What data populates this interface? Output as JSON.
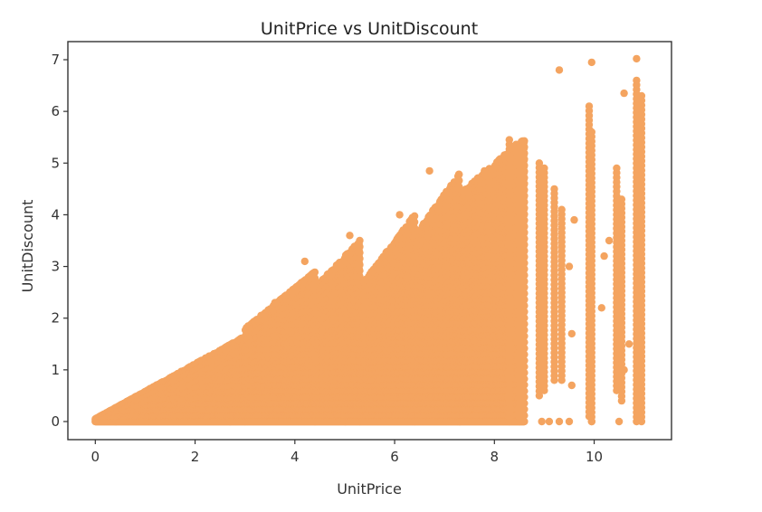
{
  "chart_data": {
    "type": "scatter",
    "title": "UnitPrice vs UnitDiscount",
    "xlabel": "UnitPrice",
    "ylabel": "UnitDiscount",
    "xlim": [
      -0.55,
      11.55
    ],
    "ylim": [
      -0.35,
      7.35
    ],
    "xticks": [
      0,
      2,
      4,
      6,
      8,
      10
    ],
    "yticks": [
      0,
      1,
      2,
      3,
      4,
      5,
      6,
      7
    ],
    "grid": false,
    "legend": "none",
    "marker_color": "#f4a460",
    "bands": [
      {
        "x_start": 0.0,
        "x_end": 3.0,
        "y_min": 0,
        "y_max_start": 0.05,
        "y_max_end": 1.65
      },
      {
        "x_start": 3.0,
        "x_end": 4.4,
        "y_min": 0,
        "y_max_start": 1.8,
        "y_max_end": 2.9
      },
      {
        "x_start": 4.4,
        "x_end": 5.3,
        "y_min": 0,
        "y_max_start": 2.6,
        "y_max_end": 3.5
      },
      {
        "x_start": 5.3,
        "x_end": 6.4,
        "y_min": 0,
        "y_max_start": 2.6,
        "y_max_end": 4.0
      },
      {
        "x_start": 6.4,
        "x_end": 7.3,
        "y_min": 0,
        "y_max_start": 3.6,
        "y_max_end": 4.8
      },
      {
        "x_start": 7.3,
        "x_end": 8.6,
        "y_min": 0,
        "y_max_start": 4.4,
        "y_max_end": 5.5
      }
    ],
    "columns": [
      {
        "x": 8.3,
        "y_min": 0.0,
        "y_max": 5.45
      },
      {
        "x": 8.5,
        "y_min": 0.0,
        "y_max": 5.3
      },
      {
        "x": 8.9,
        "y_min": 0.5,
        "y_max": 5.0
      },
      {
        "x": 9.0,
        "y_min": 0.6,
        "y_max": 4.9
      },
      {
        "x": 9.2,
        "y_min": 0.8,
        "y_max": 4.5
      },
      {
        "x": 9.35,
        "y_min": 0.8,
        "y_max": 4.1
      },
      {
        "x": 9.9,
        "y_min": 0.1,
        "y_max": 6.1
      },
      {
        "x": 9.95,
        "y_min": 0.0,
        "y_max": 5.6
      },
      {
        "x": 10.45,
        "y_min": 0.6,
        "y_max": 4.9
      },
      {
        "x": 10.55,
        "y_min": 0.4,
        "y_max": 4.3
      },
      {
        "x": 10.85,
        "y_min": 0.0,
        "y_max": 6.6
      },
      {
        "x": 10.95,
        "y_min": 0.0,
        "y_max": 6.3
      }
    ],
    "points": [
      [
        9.3,
        6.8
      ],
      [
        9.95,
        6.95
      ],
      [
        10.85,
        7.02
      ],
      [
        10.6,
        6.35
      ],
      [
        8.95,
        0.0
      ],
      [
        9.1,
        0.0
      ],
      [
        9.3,
        0.0
      ],
      [
        9.5,
        0.0
      ],
      [
        9.95,
        0.0
      ],
      [
        10.5,
        0.0
      ],
      [
        6.7,
        4.85
      ],
      [
        7.8,
        4.85
      ],
      [
        6.1,
        4.0
      ],
      [
        5.1,
        3.6
      ],
      [
        4.2,
        3.1
      ],
      [
        3.6,
        2.3
      ],
      [
        9.55,
        0.7
      ],
      [
        9.55,
        1.7
      ],
      [
        9.5,
        3.0
      ],
      [
        9.6,
        3.9
      ],
      [
        10.2,
        3.2
      ],
      [
        10.3,
        3.5
      ],
      [
        10.15,
        2.2
      ],
      [
        10.7,
        1.5
      ],
      [
        10.6,
        1.0
      ]
    ]
  }
}
